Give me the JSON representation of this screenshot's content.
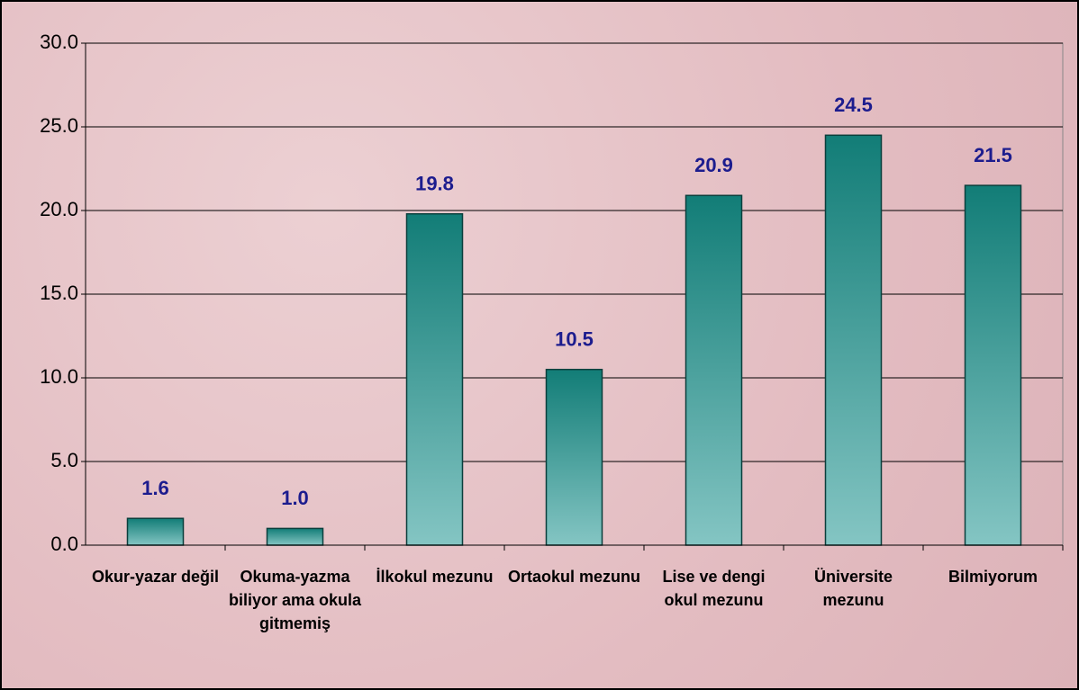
{
  "chart_data": {
    "type": "bar",
    "categories": [
      "Okur-yazar değil",
      "Okuma-yazma biliyor ama okula gitmemiş",
      "İlkokul mezunu",
      "Ortaokul mezunu",
      "Lise ve dengi okul mezunu",
      "Üniversite mezunu",
      "Bilmiyorum"
    ],
    "values": [
      1.6,
      1.0,
      19.8,
      10.5,
      20.9,
      24.5,
      21.5
    ],
    "value_labels": [
      "1.6",
      "1.0",
      "19.8",
      "10.5",
      "20.9",
      "24.5",
      "21.5"
    ],
    "color": "#127d77",
    "ylim": [
      0,
      30
    ],
    "yticks": [
      {
        "value": 0,
        "label": "0.0"
      },
      {
        "value": 5,
        "label": "5.0"
      },
      {
        "value": 10,
        "label": "10.0"
      },
      {
        "value": 15,
        "label": "15.0"
      },
      {
        "value": 20,
        "label": "20.0"
      },
      {
        "value": 25,
        "label": "25.0"
      },
      {
        "value": 30,
        "label": "30.0"
      }
    ],
    "grid": true
  }
}
